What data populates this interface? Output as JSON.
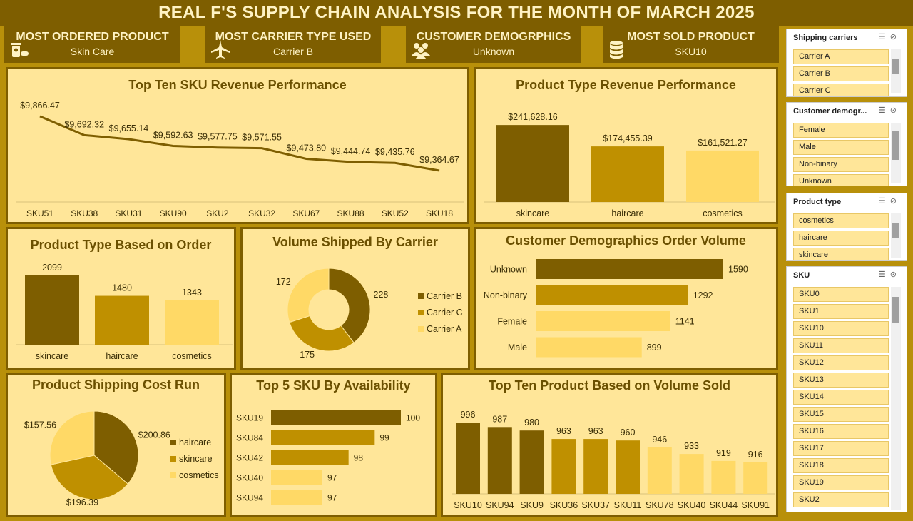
{
  "title": "REAL F'S SUPPLY CHAIN ANALYSIS FOR THE MONTH OF MARCH 2025",
  "kpis": [
    {
      "title": "MOST ORDERED PRODUCT",
      "value": "Skin Care",
      "icon": "medicine-icon"
    },
    {
      "title": "MOST CARRIER TYPE USED",
      "value": "Carrier B",
      "icon": "airplane-icon"
    },
    {
      "title": "CUSTOMER DEMOGRPHICS",
      "value": "Unknown",
      "icon": "people-icon"
    },
    {
      "title": "MOST SOLD PRODUCT",
      "value": "SKU10",
      "icon": "database-icon"
    }
  ],
  "colors": {
    "dark": "#7E5E00",
    "mid": "#BF9000",
    "light": "#FFD966",
    "panel": "#FFE699"
  },
  "chart_data": [
    {
      "id": "sku_revenue",
      "type": "line",
      "title": "Top Ten SKU Revenue Performance",
      "categories": [
        "SKU51",
        "SKU38",
        "SKU31",
        "SKU90",
        "SKU2",
        "SKU32",
        "SKU67",
        "SKU88",
        "SKU52",
        "SKU18"
      ],
      "values": [
        9866.47,
        9692.32,
        9655.14,
        9592.63,
        9577.75,
        9571.55,
        9473.8,
        9444.74,
        9435.76,
        9364.67
      ],
      "labels": [
        "$9,866.47",
        "$9,692.32",
        "$9,655.14",
        "$9,592.63",
        "$9,577.75",
        "$9,571.55",
        "$9,473.80",
        "$9,444.74",
        "$9,435.76",
        "$9,364.67"
      ],
      "ylim": [
        9150,
        9950
      ]
    },
    {
      "id": "type_revenue",
      "type": "bar",
      "title": "Product Type Revenue Performance",
      "categories": [
        "skincare",
        "haircare",
        "cosmetics"
      ],
      "values": [
        241628.16,
        174455.39,
        161521.27
      ],
      "labels": [
        "$241,628.16",
        "$174,455.39",
        "$161,521.27"
      ],
      "ylim": [
        0,
        280000
      ]
    },
    {
      "id": "type_order",
      "type": "bar",
      "title": "Product Type Based on Order",
      "categories": [
        "skincare",
        "haircare",
        "cosmetics"
      ],
      "values": [
        2099,
        1480,
        1343
      ],
      "labels": [
        "2099",
        "1480",
        "1343"
      ],
      "ylim": [
        0,
        2400
      ]
    },
    {
      "id": "carrier_volume",
      "type": "pie",
      "donut": true,
      "title": "Volume Shipped By Carrier",
      "categories": [
        "Carrier B",
        "Carrier C",
        "Carrier A"
      ],
      "values": [
        228,
        175,
        172
      ],
      "labels": [
        "228",
        "175",
        "172"
      ],
      "legend": "right"
    },
    {
      "id": "demo_volume",
      "type": "bar",
      "orientation": "horizontal",
      "title": "Customer Demographics Order Volume",
      "categories": [
        "Unknown",
        "Non-binary",
        "Female",
        "Male"
      ],
      "values": [
        1590,
        1292,
        1141,
        899
      ],
      "labels": [
        "1590",
        "1292",
        "1141",
        "899"
      ],
      "xlim": [
        0,
        1600
      ]
    },
    {
      "id": "shipping_cost",
      "type": "pie",
      "title": "Product Shipping Cost Run",
      "categories": [
        "haircare",
        "skincare",
        "cosmetics"
      ],
      "values": [
        200.86,
        196.39,
        157.56
      ],
      "labels": [
        "$200.86",
        "$196.39",
        "$157.56"
      ],
      "legend": "right"
    },
    {
      "id": "sku_availability",
      "type": "bar",
      "orientation": "horizontal",
      "title": "Top 5 SKU By Availability",
      "categories": [
        "SKU19",
        "SKU84",
        "SKU42",
        "SKU40",
        "SKU94"
      ],
      "values": [
        100,
        99,
        98,
        97,
        97
      ],
      "labels": [
        "100",
        "99",
        "98",
        "97",
        "97"
      ]
    },
    {
      "id": "volume_sold",
      "type": "bar",
      "title": "Top Ten Product Based on Volume Sold",
      "categories": [
        "SKU10",
        "SKU94",
        "SKU9",
        "SKU36",
        "SKU37",
        "SKU11",
        "SKU78",
        "SKU40",
        "SKU44",
        "SKU91"
      ],
      "values": [
        996,
        987,
        980,
        963,
        963,
        960,
        946,
        933,
        919,
        916
      ],
      "labels": [
        "996",
        "987",
        "980",
        "963",
        "963",
        "960",
        "946",
        "933",
        "919",
        "916"
      ]
    }
  ],
  "slicers": [
    {
      "title": "Shipping carriers",
      "items": [
        "Carrier A",
        "Carrier B",
        "Carrier C"
      ]
    },
    {
      "title": "Customer demogr...",
      "items": [
        "Female",
        "Male",
        "Non-binary",
        "Unknown"
      ]
    },
    {
      "title": "Product type",
      "items": [
        "cosmetics",
        "haircare",
        "skincare"
      ]
    },
    {
      "title": "SKU",
      "items": [
        "SKU0",
        "SKU1",
        "SKU10",
        "SKU11",
        "SKU12",
        "SKU13",
        "SKU14",
        "SKU15",
        "SKU16",
        "SKU17",
        "SKU18",
        "SKU19",
        "SKU2"
      ]
    }
  ]
}
